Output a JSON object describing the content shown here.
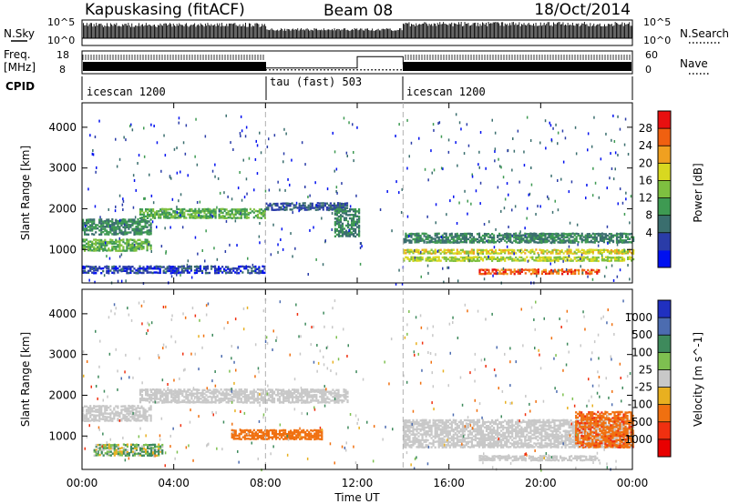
{
  "header": {
    "station": "Kapuskasing (fitACF)",
    "beam": "Beam 08",
    "date": "18/Oct/2014"
  },
  "nsky_panel": {
    "left_label": "N.Sky",
    "right_label": "N.Search",
    "left_ticks": [
      "10^5",
      "10^0"
    ],
    "right_ticks": [
      "10^5",
      "10^0"
    ]
  },
  "freq_panel": {
    "left_label_top": "Freq.",
    "left_label_bottom": "[MHz]",
    "right_label": "Nave",
    "left_ticks": [
      "18",
      "8"
    ],
    "right_ticks": [
      "60",
      "0"
    ],
    "freq_level_mhz": 12,
    "nave_segments": [
      {
        "start_h": 8.0,
        "end_h": 12.0,
        "nave": 15
      },
      {
        "start_h": 12.0,
        "end_h": 14.0,
        "nave": 45
      }
    ]
  },
  "cpid_panel": {
    "label": "CPID",
    "segments": [
      {
        "start_h": 0,
        "end_h": 8,
        "name": "icescan 1200"
      },
      {
        "start_h": 8,
        "end_h": 14,
        "name": "tau (fast) 503"
      },
      {
        "start_h": 14,
        "end_h": 24,
        "name": "icescan 1200"
      }
    ]
  },
  "axes": {
    "xlabel": "Time UT",
    "x_ticks": [
      "00:00",
      "04:00",
      "08:00",
      "12:00",
      "16:00",
      "20:00",
      "00:00"
    ],
    "x_range_hours": [
      0,
      24
    ],
    "ylabel": "Slant Range [km]",
    "y_range_km": [
      180,
      4600
    ],
    "y_ticks": [
      1000,
      2000,
      3000,
      4000
    ]
  },
  "power_colorbar": {
    "label": "Power [dB]",
    "ticks": [
      "28",
      "24",
      "20",
      "16",
      "12",
      "8",
      "4"
    ],
    "colors": [
      "#0010f0",
      "#2a3ca8",
      "#3a6e6e",
      "#3e9a52",
      "#7ec040",
      "#d8d820",
      "#f0a020",
      "#f06010",
      "#e81010"
    ]
  },
  "velocity_colorbar": {
    "label": "Velocity [m s^-1]",
    "ticks": [
      "1000",
      "500",
      "100",
      "25",
      "-25",
      "-100",
      "-500",
      "-1000"
    ],
    "colors": [
      "#2030c0",
      "#4c6cb0",
      "#3e8a5c",
      "#7ec050",
      "#c8c8c8",
      "#e8b020",
      "#f07010",
      "#f03010",
      "#e80000"
    ]
  },
  "chart_data": [
    {
      "type": "heatmap",
      "title": "Power",
      "xlabel": "Time UT",
      "ylabel": "Slant Range [km]",
      "x_unit": "hours UT",
      "xlim": [
        0,
        24
      ],
      "ylim": [
        180,
        4600
      ],
      "colorbar_label": "Power [dB]",
      "regions": [
        {
          "t0": 0.0,
          "t1": 3.0,
          "r0": 1350,
          "r1": 1750,
          "value_db": 12
        },
        {
          "t0": 0.0,
          "t1": 3.0,
          "r0": 950,
          "r1": 1250,
          "value_db": 16
        },
        {
          "t0": 2.5,
          "t1": 8.0,
          "r0": 1750,
          "r1": 2000,
          "value_db": 16
        },
        {
          "t0": 8.0,
          "t1": 11.6,
          "r0": 1950,
          "r1": 2150,
          "value_db": 8
        },
        {
          "t0": 11.0,
          "t1": 12.1,
          "r0": 1300,
          "r1": 2000,
          "value_db": 12
        },
        {
          "t0": 14.0,
          "t1": 24.0,
          "r0": 1150,
          "r1": 1400,
          "value_db": 12
        },
        {
          "t0": 14.0,
          "t1": 24.0,
          "r0": 880,
          "r1": 1000,
          "value_db": 22
        },
        {
          "t0": 14.0,
          "t1": 24.0,
          "r0": 700,
          "r1": 820,
          "value_db": 20
        },
        {
          "t0": 17.3,
          "t1": 22.5,
          "r0": 380,
          "r1": 520,
          "value_db": 30
        },
        {
          "t0": 0.0,
          "t1": 8.0,
          "r0": 400,
          "r1": 600,
          "value_db": 6
        }
      ]
    },
    {
      "type": "heatmap",
      "title": "Velocity",
      "xlabel": "Time UT",
      "ylabel": "Slant Range [km]",
      "x_unit": "hours UT",
      "xlim": [
        0,
        24
      ],
      "ylim": [
        180,
        4600
      ],
      "colorbar_label": "Velocity [m s^-1]",
      "regions": [
        {
          "t0": 0.0,
          "t1": 3.0,
          "r0": 1350,
          "r1": 1750,
          "value_ms": 0
        },
        {
          "t0": 2.5,
          "t1": 11.6,
          "r0": 1800,
          "r1": 2150,
          "value_ms": 0
        },
        {
          "t0": 14.0,
          "t1": 24.0,
          "r0": 700,
          "r1": 1400,
          "value_ms": 0
        },
        {
          "t0": 17.3,
          "t1": 22.5,
          "r0": 380,
          "r1": 520,
          "value_ms": 0
        },
        {
          "t0": 6.5,
          "t1": 10.5,
          "r0": 900,
          "r1": 1150,
          "value_ms": -300
        },
        {
          "t0": 21.5,
          "t1": 24.0,
          "r0": 700,
          "r1": 1600,
          "value_ms": -400
        },
        {
          "t0": 0.5,
          "t1": 3.5,
          "r0": 500,
          "r1": 800,
          "value_ms": 60
        }
      ]
    }
  ]
}
